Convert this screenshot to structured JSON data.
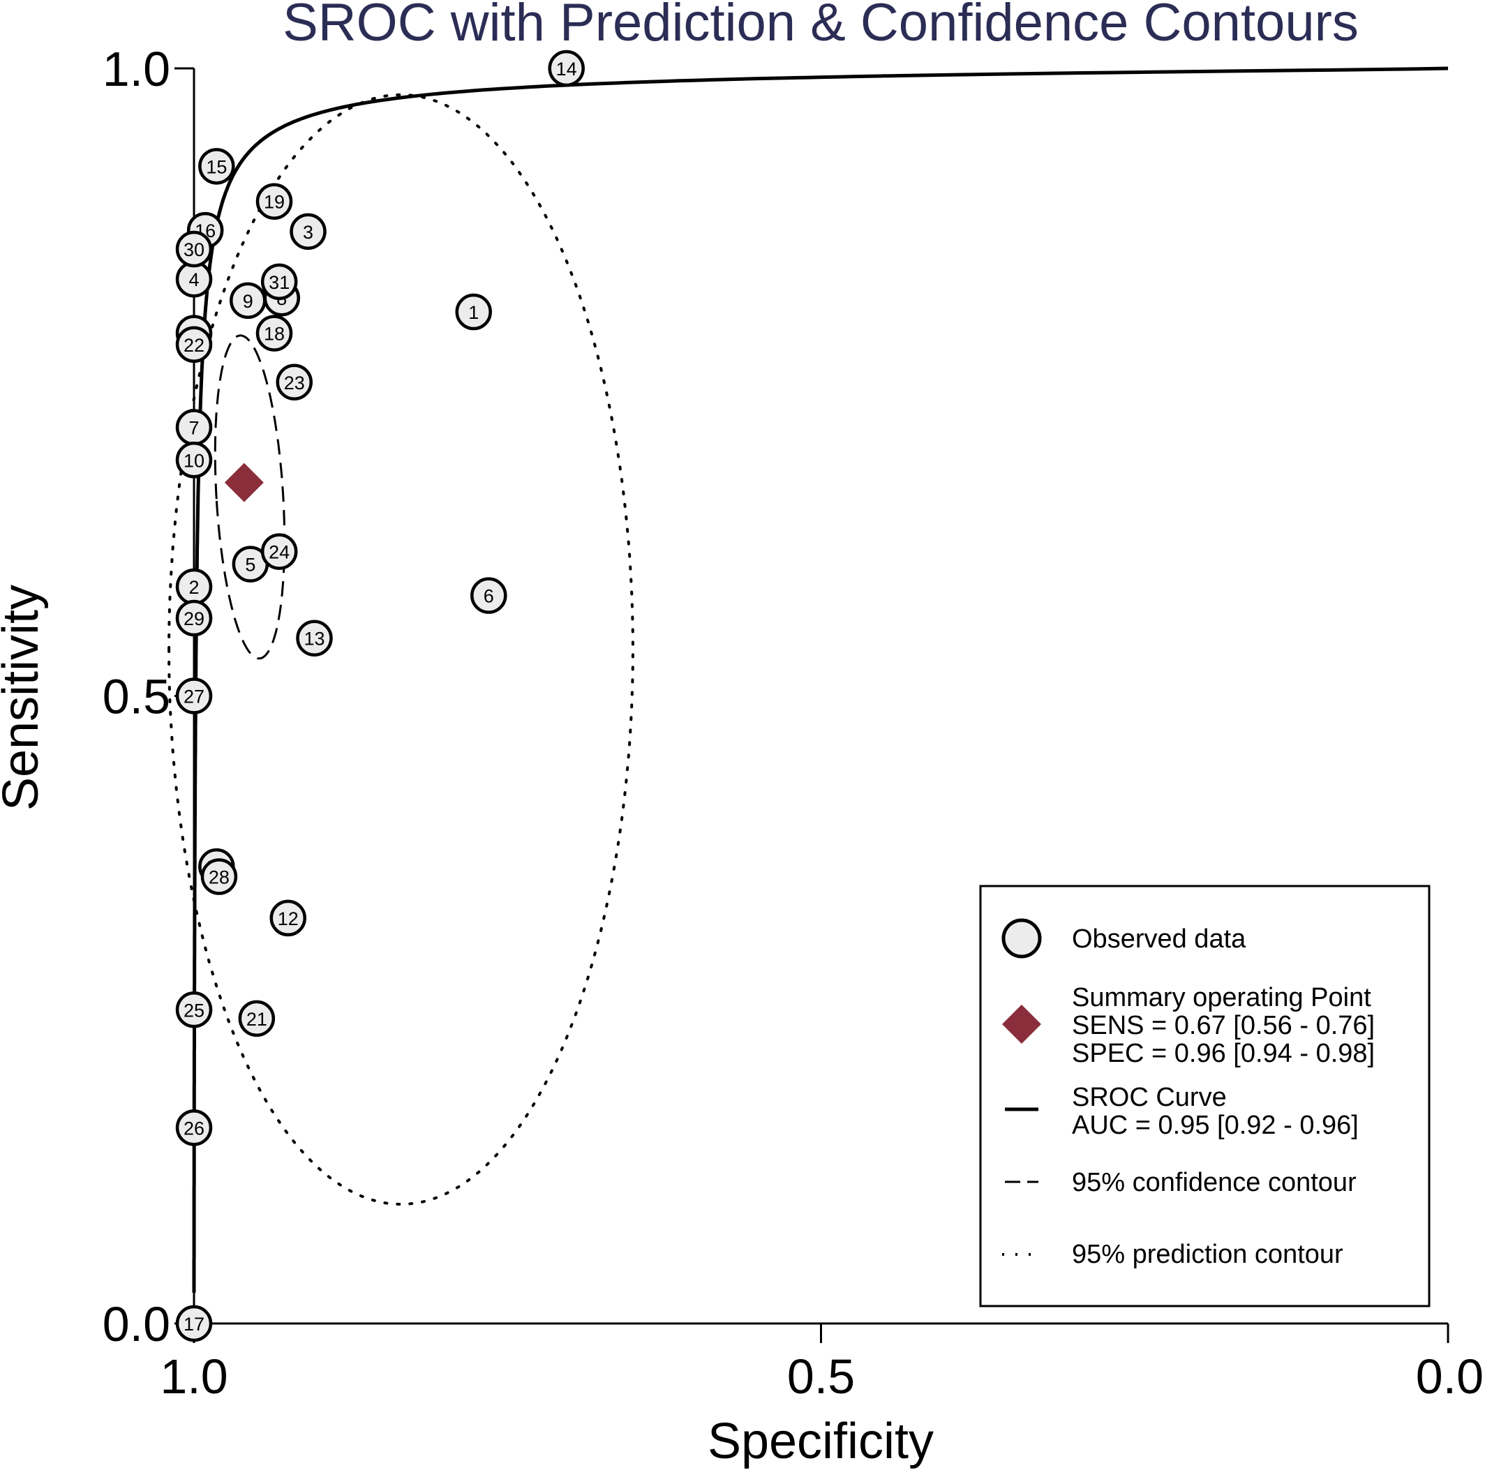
{
  "chart_data": {
    "type": "scatter",
    "title": "SROC with Prediction & Confidence Contours",
    "xlabel": "Specificity",
    "ylabel": "Sensitivity",
    "xlim": [
      1.0,
      0.0
    ],
    "ylim": [
      0.0,
      1.0
    ],
    "x_reversed": true,
    "grid": false,
    "x_ticks": [
      "1.0",
      "0.5",
      "0.0"
    ],
    "y_ticks": [
      "0.0",
      "0.5",
      "1.0"
    ],
    "observed": [
      {
        "label": "1",
        "spec": 0.777,
        "sens": 0.806
      },
      {
        "label": "2",
        "spec": 1.0,
        "sens": 0.587
      },
      {
        "label": "3",
        "spec": 0.909,
        "sens": 0.87
      },
      {
        "label": "4",
        "spec": 1.0,
        "sens": 0.832
      },
      {
        "label": "5",
        "spec": 0.955,
        "sens": 0.605
      },
      {
        "label": "6",
        "spec": 0.765,
        "sens": 0.58
      },
      {
        "label": "7",
        "spec": 1.0,
        "sens": 0.714
      },
      {
        "label": "8",
        "spec": 0.93,
        "sens": 0.817
      },
      {
        "label": "9",
        "spec": 0.957,
        "sens": 0.815
      },
      {
        "label": "10",
        "spec": 1.0,
        "sens": 0.688
      },
      {
        "label": "11",
        "spec": 1.0,
        "sens": 0.789
      },
      {
        "label": "12",
        "spec": 0.925,
        "sens": 0.323
      },
      {
        "label": "13",
        "spec": 0.904,
        "sens": 0.546
      },
      {
        "label": "14",
        "spec": 0.703,
        "sens": 1.0
      },
      {
        "label": "15",
        "spec": 0.982,
        "sens": 0.922
      },
      {
        "label": "16",
        "spec": 0.991,
        "sens": 0.871
      },
      {
        "label": "17",
        "spec": 1.0,
        "sens": 0.0
      },
      {
        "label": "18",
        "spec": 0.936,
        "sens": 0.789
      },
      {
        "label": "19",
        "spec": 0.936,
        "sens": 0.894
      },
      {
        "label": "20",
        "spec": 0.982,
        "sens": 0.364
      },
      {
        "label": "21",
        "spec": 0.95,
        "sens": 0.243
      },
      {
        "label": "22",
        "spec": 1.0,
        "sens": 0.78
      },
      {
        "label": "23",
        "spec": 0.92,
        "sens": 0.75
      },
      {
        "label": "24",
        "spec": 0.932,
        "sens": 0.615
      },
      {
        "label": "25",
        "spec": 1.0,
        "sens": 0.25
      },
      {
        "label": "26",
        "spec": 1.0,
        "sens": 0.156
      },
      {
        "label": "27",
        "spec": 1.0,
        "sens": 0.5
      },
      {
        "label": "28",
        "spec": 0.98,
        "sens": 0.356
      },
      {
        "label": "29",
        "spec": 1.0,
        "sens": 0.562
      },
      {
        "label": "30",
        "spec": 1.0,
        "sens": 0.856
      },
      {
        "label": "31",
        "spec": 0.932,
        "sens": 0.83
      }
    ],
    "summary_point": {
      "spec": 0.96,
      "sens": 0.67,
      "color": "#8a2e3b"
    },
    "sroc_curve": {
      "auc": 0.95
    },
    "legend": {
      "position": "bottom-right",
      "observed": "Observed data",
      "summary_title": "Summary operating Point",
      "summary_sens": "SENS = 0.67 [0.56 - 0.76]",
      "summary_spec": "SPEC = 0.96 [0.94 - 0.98]",
      "curve_title": "SROC Curve",
      "curve_auc": "AUC = 0.95 [0.92 - 0.96]",
      "confidence": "95% confidence contour",
      "prediction": "95% prediction contour"
    },
    "colors": {
      "title": "#2b2d55",
      "marker_fill": "#ececec",
      "summary": "#8a2e3b",
      "line": "#000000"
    }
  }
}
